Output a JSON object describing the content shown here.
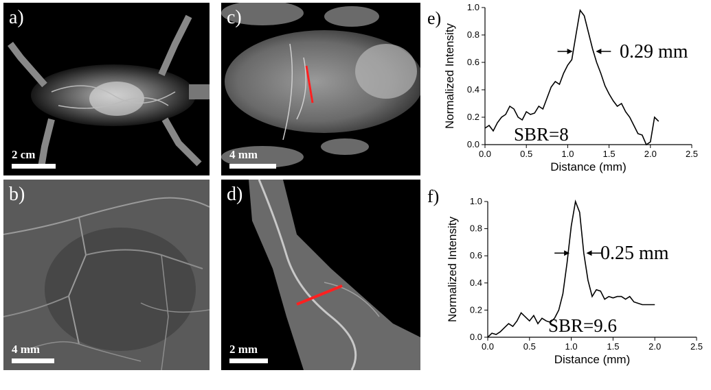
{
  "panels": {
    "a": {
      "label": "a)",
      "scale_bar": "2 cm"
    },
    "b": {
      "label": "b)",
      "scale_bar": "4 mm"
    },
    "c": {
      "label": "c)",
      "scale_bar": "4 mm"
    },
    "d": {
      "label": "d)",
      "scale_bar": "2 mm"
    }
  },
  "chart_data": [
    {
      "panel_label": "e)",
      "type": "line",
      "xlabel": "Distance (mm)",
      "ylabel": "Normalized Intensity",
      "xlim": [
        0,
        2.5
      ],
      "ylim": [
        0,
        1.0
      ],
      "xticks": [
        "0.0",
        "0.5",
        "1.0",
        "1.5",
        "2.0",
        "2.5"
      ],
      "yticks": [
        "0.0",
        "0.2",
        "0.4",
        "0.6",
        "0.8",
        "1.0"
      ],
      "annotations": {
        "fwhm": "0.29 mm",
        "sbr": "SBR=8"
      },
      "x": [
        0.0,
        0.05,
        0.1,
        0.15,
        0.2,
        0.25,
        0.3,
        0.35,
        0.4,
        0.45,
        0.5,
        0.55,
        0.6,
        0.65,
        0.7,
        0.75,
        0.8,
        0.85,
        0.9,
        0.95,
        1.0,
        1.05,
        1.1,
        1.15,
        1.2,
        1.25,
        1.3,
        1.35,
        1.4,
        1.45,
        1.5,
        1.55,
        1.6,
        1.65,
        1.7,
        1.75,
        1.8,
        1.85,
        1.9,
        1.95,
        2.0,
        2.05,
        2.1
      ],
      "y": [
        0.12,
        0.14,
        0.1,
        0.16,
        0.2,
        0.22,
        0.28,
        0.26,
        0.2,
        0.18,
        0.24,
        0.22,
        0.23,
        0.28,
        0.26,
        0.34,
        0.42,
        0.46,
        0.44,
        0.52,
        0.58,
        0.62,
        0.8,
        0.98,
        0.94,
        0.82,
        0.7,
        0.6,
        0.52,
        0.43,
        0.37,
        0.32,
        0.28,
        0.3,
        0.24,
        0.2,
        0.14,
        0.08,
        0.07,
        0.0,
        0.02,
        0.2,
        0.17
      ]
    },
    {
      "panel_label": "f)",
      "type": "line",
      "xlabel": "Distance (mm)",
      "ylabel": "Normalized Intensity",
      "xlim": [
        0,
        2.5
      ],
      "ylim": [
        0,
        1.0
      ],
      "xticks": [
        "0.0",
        "0.5",
        "1.0",
        "1.5",
        "2.0",
        "2.5"
      ],
      "yticks": [
        "0.0",
        "0.2",
        "0.4",
        "0.6",
        "0.8",
        "1.0"
      ],
      "annotations": {
        "fwhm": "0.25 mm",
        "sbr": "SBR=9.6"
      },
      "x": [
        0.0,
        0.05,
        0.1,
        0.15,
        0.2,
        0.25,
        0.3,
        0.35,
        0.4,
        0.45,
        0.5,
        0.55,
        0.6,
        0.65,
        0.7,
        0.75,
        0.8,
        0.85,
        0.9,
        0.95,
        1.0,
        1.05,
        1.1,
        1.15,
        1.2,
        1.25,
        1.3,
        1.35,
        1.4,
        1.45,
        1.5,
        1.55,
        1.6,
        1.65,
        1.7,
        1.75,
        1.8,
        1.85,
        1.9,
        1.95,
        2.0
      ],
      "y": [
        0.0,
        0.03,
        0.02,
        0.04,
        0.07,
        0.1,
        0.08,
        0.12,
        0.18,
        0.15,
        0.12,
        0.16,
        0.1,
        0.14,
        0.12,
        0.11,
        0.14,
        0.2,
        0.32,
        0.55,
        0.82,
        1.0,
        0.92,
        0.62,
        0.42,
        0.3,
        0.35,
        0.34,
        0.28,
        0.3,
        0.29,
        0.3,
        0.3,
        0.28,
        0.3,
        0.26,
        0.25,
        0.24,
        0.24,
        0.24,
        0.24
      ]
    }
  ]
}
